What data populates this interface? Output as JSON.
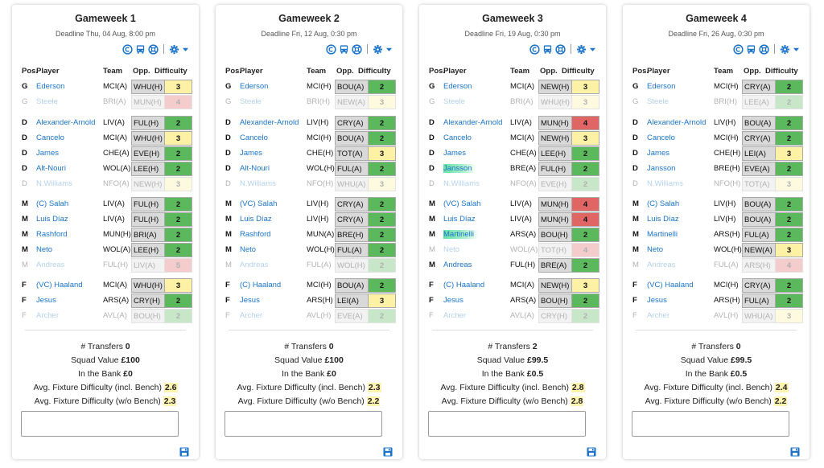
{
  "colors": {
    "green": "#5cb85c",
    "yellow": "#fcf1a4",
    "red": "#e06666",
    "link": "#1a73c9",
    "highlight": "#fff3b0",
    "transfer": "#67e0a6"
  },
  "icons": [
    "copyright-icon",
    "bus-icon",
    "lifebuoy-icon",
    "gear-icon",
    "caret-down-icon",
    "save-icon"
  ],
  "columns": {
    "pos": "Pos.",
    "player": "Player",
    "team": "Team",
    "opp": "Opp.",
    "difficulty": "Difficulty"
  },
  "labels": {
    "transfers": "# Transfers",
    "squad_value": "Squad Value",
    "bank": "In the Bank",
    "avg_incl": "Avg. Fixture Difficulty (incl. Bench)",
    "avg_wo": "Avg. Fixture Difficulty (w/o Bench)"
  },
  "gameweeks": [
    {
      "title": "Gameweek 1",
      "deadline": "Deadline Thu, 04 Aug, 8:00 pm",
      "players": [
        {
          "pos": "G",
          "name": "Ederson",
          "team": "MCI(A)",
          "opp": "WHU(H)",
          "diff": "3",
          "bench": false,
          "transfer": false
        },
        {
          "pos": "G",
          "name": "Steele",
          "team": "BRI(A)",
          "opp": "MUN(H)",
          "diff": "4",
          "bench": true,
          "transfer": false
        },
        {
          "pos": "D",
          "name": "Alexander-Arnold",
          "team": "LIV(A)",
          "opp": "FUL(H)",
          "diff": "2",
          "bench": false,
          "transfer": false
        },
        {
          "pos": "D",
          "name": "Cancelo",
          "team": "MCI(A)",
          "opp": "WHU(H)",
          "diff": "3",
          "bench": false,
          "transfer": false
        },
        {
          "pos": "D",
          "name": "James",
          "team": "CHE(A)",
          "opp": "EVE(H)",
          "diff": "2",
          "bench": false,
          "transfer": false
        },
        {
          "pos": "D",
          "name": "Alt-Nouri",
          "team": "WOL(A)",
          "opp": "LEE(H)",
          "diff": "2",
          "bench": false,
          "transfer": false
        },
        {
          "pos": "D",
          "name": "N.Williams",
          "team": "NFO(A)",
          "opp": "NEW(H)",
          "diff": "3",
          "bench": true,
          "transfer": false
        },
        {
          "pos": "M",
          "name": "(C) Salah",
          "team": "LIV(A)",
          "opp": "FUL(H)",
          "diff": "2",
          "bench": false,
          "transfer": false
        },
        {
          "pos": "M",
          "name": "Luis Díaz",
          "team": "LIV(A)",
          "opp": "FUL(H)",
          "diff": "2",
          "bench": false,
          "transfer": false
        },
        {
          "pos": "M",
          "name": "Rashford",
          "team": "MUN(H)",
          "opp": "BRI(A)",
          "diff": "2",
          "bench": false,
          "transfer": false
        },
        {
          "pos": "M",
          "name": "Neto",
          "team": "WOL(A)",
          "opp": "LEE(H)",
          "diff": "2",
          "bench": false,
          "transfer": false
        },
        {
          "pos": "M",
          "name": "Andreas",
          "team": "FUL(H)",
          "opp": "LIV(A)",
          "diff": "5",
          "bench": true,
          "transfer": false
        },
        {
          "pos": "F",
          "name": "(VC) Haaland",
          "team": "MCI(A)",
          "opp": "WHU(H)",
          "diff": "3",
          "bench": false,
          "transfer": false
        },
        {
          "pos": "F",
          "name": "Jesus",
          "team": "ARS(A)",
          "opp": "CRY(H)",
          "diff": "2",
          "bench": false,
          "transfer": false
        },
        {
          "pos": "F",
          "name": "Archer",
          "team": "AVL(A)",
          "opp": "BOU(H)",
          "diff": "2",
          "bench": true,
          "transfer": false
        }
      ],
      "transfers": "0",
      "squad_value": "£100",
      "bank": "£0",
      "avg_incl": "2.6",
      "avg_wo": "2.3"
    },
    {
      "title": "Gameweek 2",
      "deadline": "Deadline Fri, 12 Aug, 0:30 pm",
      "players": [
        {
          "pos": "G",
          "name": "Ederson",
          "team": "MCI(H)",
          "opp": "BOU(A)",
          "diff": "2",
          "bench": false,
          "transfer": false
        },
        {
          "pos": "G",
          "name": "Steele",
          "team": "BRI(H)",
          "opp": "NEW(A)",
          "diff": "3",
          "bench": true,
          "transfer": false
        },
        {
          "pos": "D",
          "name": "Alexander-Arnold",
          "team": "LIV(H)",
          "opp": "CRY(A)",
          "diff": "2",
          "bench": false,
          "transfer": false
        },
        {
          "pos": "D",
          "name": "Cancelo",
          "team": "MCI(H)",
          "opp": "BOU(A)",
          "diff": "2",
          "bench": false,
          "transfer": false
        },
        {
          "pos": "D",
          "name": "James",
          "team": "CHE(H)",
          "opp": "TOT(A)",
          "diff": "3",
          "bench": false,
          "transfer": false
        },
        {
          "pos": "D",
          "name": "Alt-Nouri",
          "team": "WOL(H)",
          "opp": "FUL(A)",
          "diff": "2",
          "bench": false,
          "transfer": false
        },
        {
          "pos": "D",
          "name": "N.Williams",
          "team": "NFO(H)",
          "opp": "WHU(A)",
          "diff": "3",
          "bench": true,
          "transfer": false
        },
        {
          "pos": "M",
          "name": "(VC) Salah",
          "team": "LIV(H)",
          "opp": "CRY(A)",
          "diff": "2",
          "bench": false,
          "transfer": false
        },
        {
          "pos": "M",
          "name": "Luis Díaz",
          "team": "LIV(H)",
          "opp": "CRY(A)",
          "diff": "2",
          "bench": false,
          "transfer": false
        },
        {
          "pos": "M",
          "name": "Rashford",
          "team": "MUN(A)",
          "opp": "BRE(H)",
          "diff": "2",
          "bench": false,
          "transfer": false
        },
        {
          "pos": "M",
          "name": "Neto",
          "team": "WOL(H)",
          "opp": "FUL(A)",
          "diff": "2",
          "bench": false,
          "transfer": false
        },
        {
          "pos": "M",
          "name": "Andreas",
          "team": "FUL(A)",
          "opp": "WOL(H)",
          "diff": "2",
          "bench": true,
          "transfer": false
        },
        {
          "pos": "F",
          "name": "(C) Haaland",
          "team": "MCI(H)",
          "opp": "BOU(A)",
          "diff": "2",
          "bench": false,
          "transfer": false
        },
        {
          "pos": "F",
          "name": "Jesus",
          "team": "ARS(H)",
          "opp": "LEI(A)",
          "diff": "3",
          "bench": false,
          "transfer": false
        },
        {
          "pos": "F",
          "name": "Archer",
          "team": "AVL(H)",
          "opp": "EVE(A)",
          "diff": "2",
          "bench": true,
          "transfer": false
        }
      ],
      "transfers": "0",
      "squad_value": "£100",
      "bank": "£0",
      "avg_incl": "2.3",
      "avg_wo": "2.2"
    },
    {
      "title": "Gameweek 3",
      "deadline": "Deadline Fri, 19 Aug, 0:30 pm",
      "players": [
        {
          "pos": "G",
          "name": "Ederson",
          "team": "MCI(A)",
          "opp": "NEW(H)",
          "diff": "3",
          "bench": false,
          "transfer": false
        },
        {
          "pos": "G",
          "name": "Steele",
          "team": "BRI(A)",
          "opp": "WHU(H)",
          "diff": "3",
          "bench": true,
          "transfer": false
        },
        {
          "pos": "D",
          "name": "Alexander-Arnold",
          "team": "LIV(A)",
          "opp": "MUN(H)",
          "diff": "4",
          "bench": false,
          "transfer": false
        },
        {
          "pos": "D",
          "name": "Cancelo",
          "team": "MCI(A)",
          "opp": "NEW(H)",
          "diff": "3",
          "bench": false,
          "transfer": false
        },
        {
          "pos": "D",
          "name": "James",
          "team": "CHE(A)",
          "opp": "LEE(H)",
          "diff": "2",
          "bench": false,
          "transfer": false
        },
        {
          "pos": "D",
          "name": "Jansson",
          "team": "BRE(A)",
          "opp": "FUL(H)",
          "diff": "2",
          "bench": false,
          "transfer": true
        },
        {
          "pos": "D",
          "name": "N.Williams",
          "team": "NFO(A)",
          "opp": "EVE(H)",
          "diff": "2",
          "bench": true,
          "transfer": false
        },
        {
          "pos": "M",
          "name": "(VC) Salah",
          "team": "LIV(A)",
          "opp": "MUN(H)",
          "diff": "4",
          "bench": false,
          "transfer": false
        },
        {
          "pos": "M",
          "name": "Luis Díaz",
          "team": "LIV(A)",
          "opp": "MUN(H)",
          "diff": "4",
          "bench": false,
          "transfer": false
        },
        {
          "pos": "M",
          "name": "Martinelli",
          "team": "ARS(A)",
          "opp": "BOU(H)",
          "diff": "2",
          "bench": false,
          "transfer": true
        },
        {
          "pos": "M",
          "name": "Neto",
          "team": "WOL(A)",
          "opp": "TOT(H)",
          "diff": "4",
          "bench": true,
          "transfer": false
        },
        {
          "pos": "M",
          "name": "Andreas",
          "team": "FUL(H)",
          "opp": "BRE(A)",
          "diff": "2",
          "bench": false,
          "transfer": false
        },
        {
          "pos": "F",
          "name": "(C) Haaland",
          "team": "MCI(A)",
          "opp": "NEW(H)",
          "diff": "3",
          "bench": false,
          "transfer": false
        },
        {
          "pos": "F",
          "name": "Jesus",
          "team": "ARS(A)",
          "opp": "BOU(H)",
          "diff": "2",
          "bench": false,
          "transfer": false
        },
        {
          "pos": "F",
          "name": "Archer",
          "team": "AVL(A)",
          "opp": "CRY(H)",
          "diff": "2",
          "bench": true,
          "transfer": false
        }
      ],
      "transfers": "2",
      "squad_value": "£99.5",
      "bank": "£0.5",
      "avg_incl": "2.8",
      "avg_wo": "2.8"
    },
    {
      "title": "Gameweek 4",
      "deadline": "Deadline Fri, 26 Aug, 0:30 pm",
      "players": [
        {
          "pos": "G",
          "name": "Ederson",
          "team": "MCI(H)",
          "opp": "CRY(A)",
          "diff": "2",
          "bench": false,
          "transfer": false
        },
        {
          "pos": "G",
          "name": "Steele",
          "team": "BRI(H)",
          "opp": "LEE(A)",
          "diff": "2",
          "bench": true,
          "transfer": false
        },
        {
          "pos": "D",
          "name": "Alexander-Arnold",
          "team": "LIV(H)",
          "opp": "BOU(A)",
          "diff": "2",
          "bench": false,
          "transfer": false
        },
        {
          "pos": "D",
          "name": "Cancelo",
          "team": "MCI(H)",
          "opp": "CRY(A)",
          "diff": "2",
          "bench": false,
          "transfer": false
        },
        {
          "pos": "D",
          "name": "James",
          "team": "CHE(H)",
          "opp": "LEI(A)",
          "diff": "3",
          "bench": false,
          "transfer": false
        },
        {
          "pos": "D",
          "name": "Jansson",
          "team": "BRE(H)",
          "opp": "EVE(A)",
          "diff": "2",
          "bench": false,
          "transfer": false
        },
        {
          "pos": "D",
          "name": "N.Williams",
          "team": "NFO(H)",
          "opp": "TOT(A)",
          "diff": "3",
          "bench": true,
          "transfer": false
        },
        {
          "pos": "M",
          "name": "(C) Salah",
          "team": "LIV(H)",
          "opp": "BOU(A)",
          "diff": "2",
          "bench": false,
          "transfer": false
        },
        {
          "pos": "M",
          "name": "Luis Díaz",
          "team": "LIV(H)",
          "opp": "BOU(A)",
          "diff": "2",
          "bench": false,
          "transfer": false
        },
        {
          "pos": "M",
          "name": "Martinelli",
          "team": "ARS(H)",
          "opp": "FUL(A)",
          "diff": "2",
          "bench": false,
          "transfer": false
        },
        {
          "pos": "M",
          "name": "Neto",
          "team": "WOL(H)",
          "opp": "NEW(A)",
          "diff": "3",
          "bench": false,
          "transfer": false
        },
        {
          "pos": "M",
          "name": "Andreas",
          "team": "FUL(A)",
          "opp": "ARS(H)",
          "diff": "4",
          "bench": true,
          "transfer": false
        },
        {
          "pos": "F",
          "name": "(VC) Haaland",
          "team": "MCI(H)",
          "opp": "CRY(A)",
          "diff": "2",
          "bench": false,
          "transfer": false
        },
        {
          "pos": "F",
          "name": "Jesus",
          "team": "ARS(H)",
          "opp": "FUL(A)",
          "diff": "2",
          "bench": false,
          "transfer": false
        },
        {
          "pos": "F",
          "name": "Archer",
          "team": "AVL(H)",
          "opp": "WHU(A)",
          "diff": "3",
          "bench": true,
          "transfer": false
        }
      ],
      "transfers": "0",
      "squad_value": "£99.5",
      "bank": "£0.5",
      "avg_incl": "2.4",
      "avg_wo": "2.2"
    }
  ]
}
